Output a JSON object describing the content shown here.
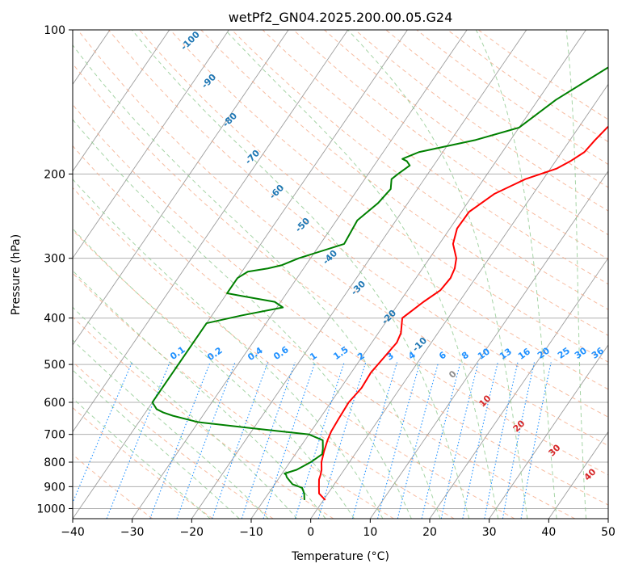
{
  "chart_data": {
    "type": "line",
    "title": "wetPf2_GN04.2025.200.00.05.G24",
    "xlabel": "Temperature (°C)",
    "ylabel": "Pressure (hPa)",
    "xlim": [
      -40,
      50
    ],
    "ylim": [
      1050,
      100
    ],
    "y_scale": "log",
    "x_ticks": [
      -40,
      -30,
      -20,
      -10,
      0,
      10,
      20,
      30,
      40,
      50
    ],
    "y_ticks": [
      100,
      200,
      300,
      400,
      500,
      600,
      700,
      800,
      900,
      1000
    ],
    "grid": true,
    "colors": {
      "temperature": "#ff0000",
      "dewpoint": "#008000",
      "isotherm_label": "#1f77b4",
      "mixing_ratio": "#1e90ff",
      "moist_adiabat_label": "#d62728",
      "dry_adiabat": "#f4a582",
      "moist_adiabat": "#8fc98f",
      "isotherm": "#8c8c8c",
      "grid": "#b0b0b0"
    },
    "isotherm_labels": [
      "-100",
      "-90",
      "-80",
      "-70",
      "-60",
      "-50",
      "-40",
      "-30",
      "-20",
      "-10"
    ],
    "mixing_ratio_labels": [
      "0.1",
      "0.2",
      "0.4",
      "0.6",
      "1",
      "1.5",
      "2",
      "3",
      "4",
      "6",
      "8",
      "10",
      "13",
      "16",
      "20",
      "25",
      "30",
      "36"
    ],
    "mixing_ratio_values": [
      0.1,
      0.2,
      0.4,
      0.6,
      1,
      1.5,
      2,
      3,
      4,
      6,
      8,
      10,
      13,
      16,
      20,
      25,
      30,
      36
    ],
    "moist_adiabat_labels": [
      "0",
      "10",
      "20",
      "30",
      "40"
    ],
    "series": [
      {
        "key": "temperature",
        "p": [
          960,
          930,
          900,
          870,
          850,
          830,
          800,
          760,
          720,
          690,
          650,
          600,
          560,
          520,
          480,
          450,
          430,
          400,
          370,
          350,
          330,
          315,
          300,
          280,
          260,
          240,
          220,
          205,
          195,
          188,
          180,
          170,
          160,
          150,
          140,
          125,
          110,
          100
        ],
        "t": [
          0.3,
          -1.5,
          -2.3,
          -3.1,
          -3.4,
          -3.8,
          -4.7,
          -5.5,
          -6.2,
          -6.6,
          -6.8,
          -7.0,
          -6.5,
          -6.7,
          -6.2,
          -5.8,
          -6.2,
          -7.7,
          -6.0,
          -4.5,
          -4.2,
          -4.6,
          -5.5,
          -7.7,
          -8.8,
          -8.7,
          -6.5,
          -3.0,
          1.0,
          2.5,
          3.8,
          4.2,
          4.8,
          6.0,
          8.0,
          11.0,
          14.5,
          17.5
        ]
      },
      {
        "key": "dewpoint",
        "p": [
          960,
          930,
          905,
          890,
          880,
          870,
          860,
          850,
          845,
          830,
          800,
          770,
          750,
          720,
          700,
          680,
          660,
          640,
          630,
          620,
          600,
          595,
          410,
          395,
          380,
          370,
          360,
          355,
          330,
          320,
          315,
          310,
          300,
          280,
          250,
          230,
          215,
          205,
          200,
          192,
          188,
          186,
          180,
          170,
          160,
          140,
          120,
          110,
          100
        ],
        "t": [
          -3.2,
          -4.0,
          -5.0,
          -7.0,
          -7.6,
          -8.2,
          -8.8,
          -9.2,
          -9.6,
          -8.0,
          -6.5,
          -5.5,
          -6.0,
          -7.0,
          -10.0,
          -20.0,
          -30.0,
          -35.0,
          -37.0,
          -38.5,
          -40.0,
          -40.0,
          -40.0,
          -35.0,
          -29.0,
          -31.0,
          -37.0,
          -40.0,
          -40.0,
          -39.0,
          -36.0,
          -34.0,
          -32.0,
          -26.0,
          -26.5,
          -25.0,
          -24.5,
          -25.5,
          -25.0,
          -24.0,
          -25.0,
          -26.0,
          -24.0,
          -16.0,
          -10.0,
          -7.0,
          -2.0,
          2.0,
          7.0
        ]
      }
    ]
  }
}
